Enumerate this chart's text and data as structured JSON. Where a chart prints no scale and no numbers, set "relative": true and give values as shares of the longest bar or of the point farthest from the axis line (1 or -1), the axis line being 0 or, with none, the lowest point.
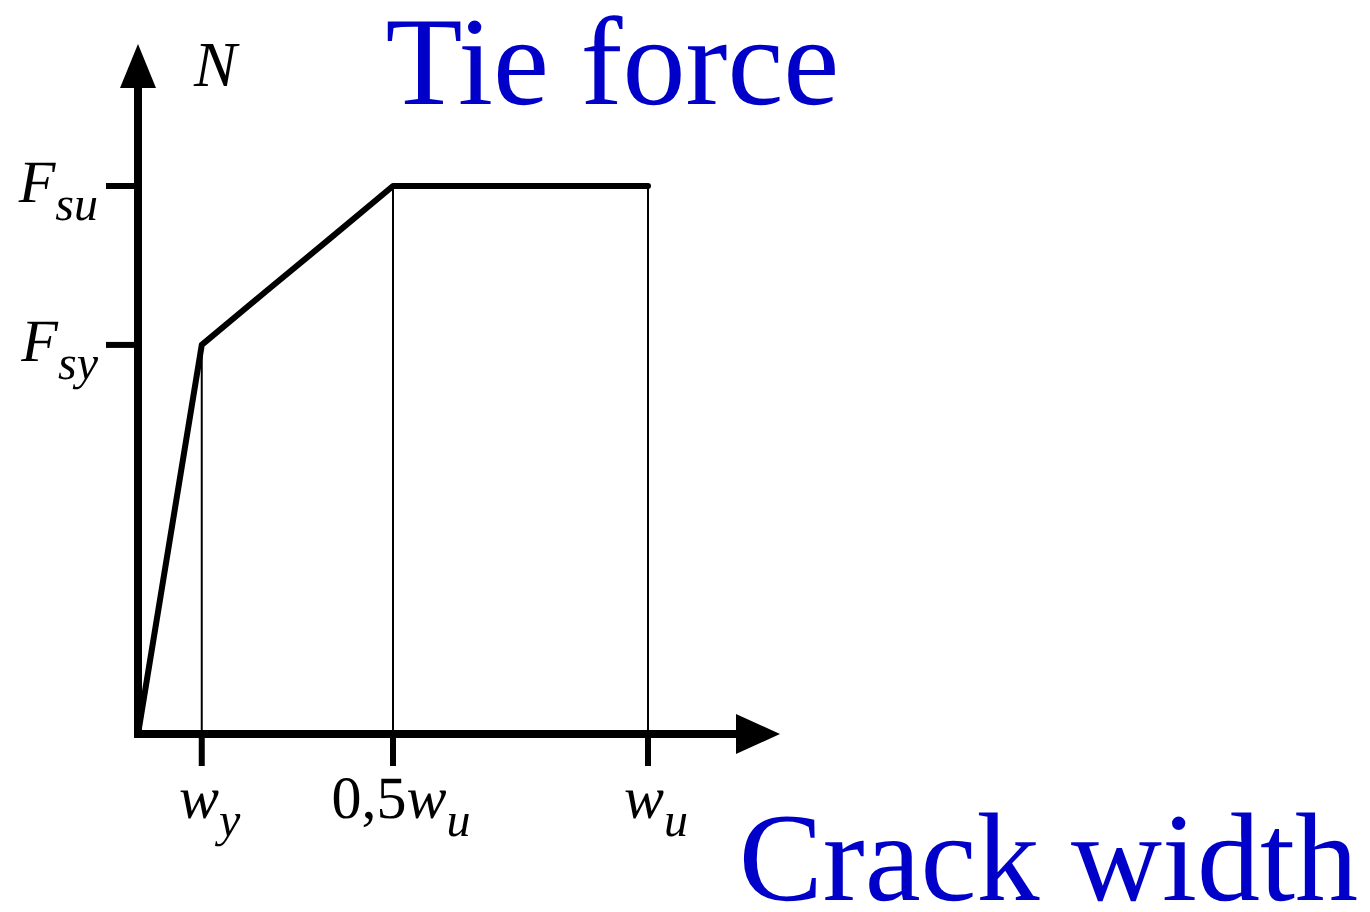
{
  "chart_data": {
    "type": "line",
    "relative": true,
    "title": "Tie force",
    "xlabel": "Crack width",
    "ylabel": "N",
    "categories": [
      null,
      "w$_{y}$",
      null,
      null,
      "0,5w$_{u}$",
      null,
      null,
      null,
      "w$_{u}$"
    ],
    "values": [
      0,
      0.71,
      0.807,
      0.903,
      1,
      1,
      1,
      1,
      1
    ],
    "color": "#000000",
    "annotations": [
      "F$_{sy}$",
      "F$_{su}$"
    ],
    "ref_lines": [
      {
        "axis": "x",
        "value": "w$_{y}$"
      },
      {
        "axis": "x",
        "value": "0,5w$_{u}$"
      },
      {
        "axis": "x",
        "value": "w$_{u}$"
      }
    ]
  }
}
